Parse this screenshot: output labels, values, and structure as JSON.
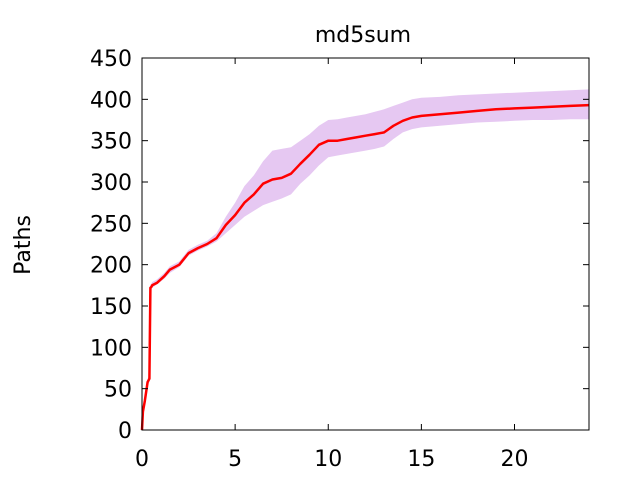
{
  "chart_data": {
    "type": "area",
    "title": "md5sum",
    "xlabel": "",
    "ylabel": "Paths",
    "xlim": [
      0,
      24
    ],
    "ylim": [
      0,
      450
    ],
    "xticks": [
      0,
      5,
      10,
      15,
      20
    ],
    "yticks": [
      0,
      50,
      100,
      150,
      200,
      250,
      300,
      350,
      400,
      450
    ],
    "grid": false,
    "legend": "none",
    "colors": {
      "line": "#ff0000",
      "band": "#e6c8f2"
    },
    "series": [
      {
        "kind": "line",
        "x": [
          0,
          0.05,
          0.15,
          0.3,
          0.4,
          0.45,
          0.5,
          0.55,
          0.8,
          1.2,
          1.5,
          2,
          2.5,
          3,
          3.5,
          4,
          4.5,
          5,
          5.5,
          6,
          6.5,
          7,
          7.5,
          8,
          8.5,
          9,
          9.5,
          10,
          10.5,
          11,
          11.5,
          12,
          12.5,
          13,
          13.5,
          14,
          14.5,
          15,
          16,
          17,
          18,
          19,
          20,
          21,
          22,
          23,
          24
        ],
        "y": [
          0,
          22,
          35,
          58,
          62,
          172,
          173,
          175,
          178,
          186,
          194,
          200,
          214,
          220,
          225,
          232,
          248,
          260,
          275,
          285,
          298,
          303,
          305,
          310,
          322,
          333,
          345,
          350,
          350,
          352,
          354,
          356,
          358,
          360,
          368,
          374,
          378,
          380,
          382,
          384,
          386,
          388,
          389,
          390,
          391,
          392,
          393
        ]
      },
      {
        "kind": "band",
        "x": [
          0,
          0.05,
          0.15,
          0.3,
          0.4,
          0.45,
          0.5,
          0.55,
          0.8,
          1.2,
          1.5,
          2,
          2.5,
          3,
          3.5,
          4,
          4.5,
          5,
          5.5,
          6,
          6.5,
          7,
          7.5,
          8,
          8.5,
          9,
          9.5,
          10,
          10.5,
          11,
          11.5,
          12,
          12.5,
          13,
          13.5,
          14,
          14.5,
          15,
          16,
          17,
          18,
          19,
          20,
          21,
          22,
          23,
          24
        ],
        "lower": [
          0,
          18,
          32,
          55,
          58,
          168,
          170,
          172,
          176,
          183,
          190,
          197,
          211,
          217,
          222,
          228,
          238,
          248,
          258,
          265,
          272,
          276,
          280,
          285,
          298,
          308,
          320,
          330,
          332,
          334,
          336,
          338,
          340,
          343,
          352,
          360,
          364,
          366,
          368,
          370,
          372,
          373,
          374,
          375,
          375,
          376,
          376
        ],
        "upper": [
          0,
          26,
          38,
          62,
          66,
          176,
          177,
          179,
          182,
          190,
          198,
          204,
          218,
          224,
          229,
          238,
          258,
          275,
          295,
          308,
          325,
          338,
          340,
          342,
          350,
          358,
          368,
          375,
          376,
          378,
          380,
          382,
          385,
          388,
          392,
          396,
          400,
          402,
          403,
          405,
          406,
          407,
          408,
          409,
          410,
          411,
          412
        ]
      }
    ]
  }
}
